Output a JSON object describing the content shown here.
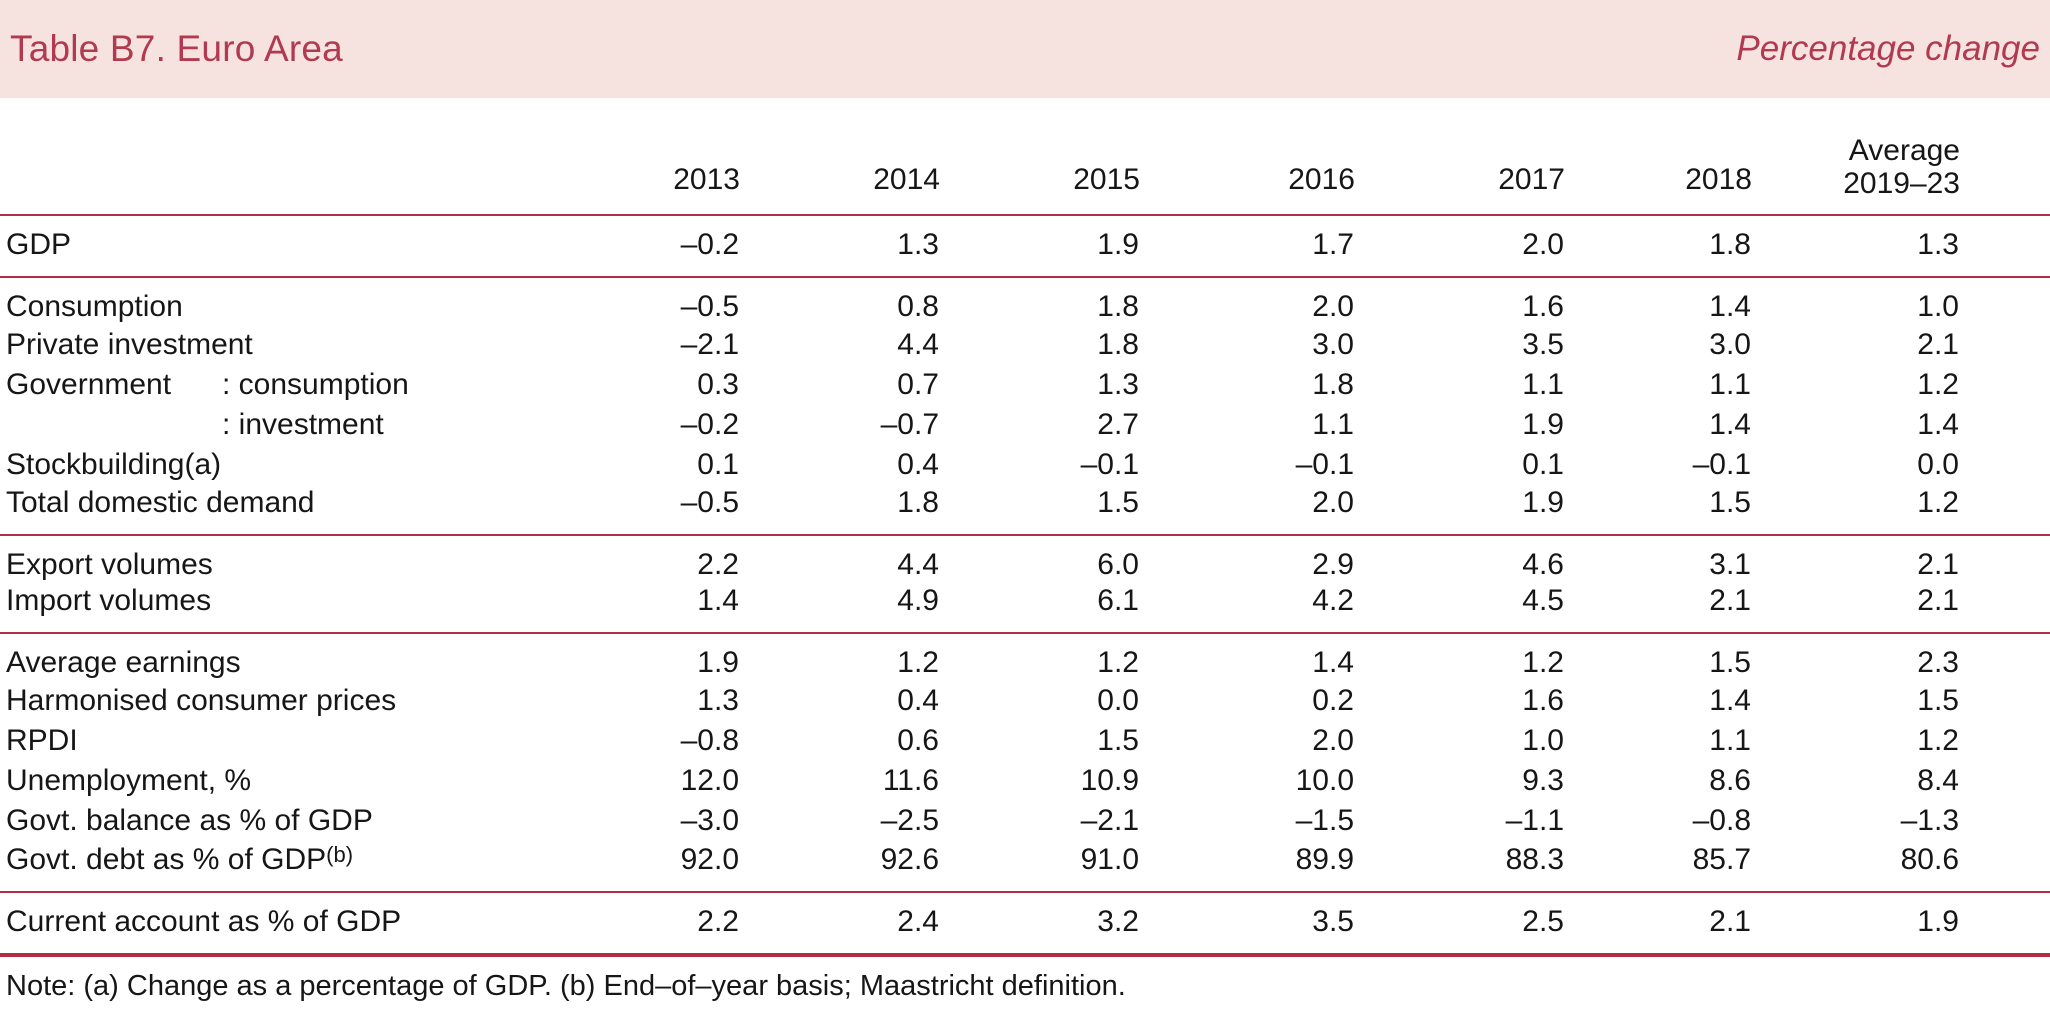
{
  "header": {
    "title": "Table B7. Euro Area",
    "subtitle": "Percentage change"
  },
  "colors": {
    "band_bg": "#f6e3e0",
    "accent_crimson": "#b13a50",
    "rule_crimson": "#b22e48",
    "text": "#161616"
  },
  "table": {
    "years": [
      "2013",
      "2014",
      "2015",
      "2016",
      "2017",
      "2018"
    ],
    "avg_line1": "Average",
    "avg_line2": "2019–23",
    "sections": [
      {
        "rows": [
          {
            "label": "GDP",
            "values": [
              "–0.2",
              "1.3",
              "1.9",
              "1.7",
              "2.0",
              "1.8",
              "1.3"
            ]
          }
        ]
      },
      {
        "rows": [
          {
            "label": "Consumption",
            "values": [
              "–0.5",
              "0.8",
              "1.8",
              "2.0",
              "1.6",
              "1.4",
              "1.0"
            ]
          },
          {
            "label": "Private investment",
            "values": [
              "–2.1",
              "4.4",
              "1.8",
              "3.0",
              "3.5",
              "3.0",
              "2.1"
            ]
          },
          {
            "prefix": "Government",
            "label": ": consumption",
            "values": [
              "0.3",
              "0.7",
              "1.3",
              "1.8",
              "1.1",
              "1.1",
              "1.2"
            ]
          },
          {
            "label": ": investment",
            "indent": true,
            "values": [
              "–0.2",
              "–0.7",
              "2.7",
              "1.1",
              "1.9",
              "1.4",
              "1.4"
            ]
          },
          {
            "label": "Stockbuilding(a)",
            "values": [
              "0.1",
              "0.4",
              "–0.1",
              "–0.1",
              "0.1",
              "–0.1",
              "0.0"
            ]
          },
          {
            "label": "Total domestic demand",
            "values": [
              "–0.5",
              "1.8",
              "1.5",
              "2.0",
              "1.9",
              "1.5",
              "1.2"
            ]
          }
        ]
      },
      {
        "rows": [
          {
            "label": "Export volumes",
            "values": [
              "2.2",
              "4.4",
              "6.0",
              "2.9",
              "4.6",
              "3.1",
              "2.1"
            ]
          },
          {
            "label": "Import volumes",
            "values": [
              "1.4",
              "4.9",
              "6.1",
              "4.2",
              "4.5",
              "2.1",
              "2.1"
            ]
          }
        ]
      },
      {
        "rows": [
          {
            "label": "Average earnings",
            "values": [
              "1.9",
              "1.2",
              "1.2",
              "1.4",
              "1.2",
              "1.5",
              "2.3"
            ]
          },
          {
            "label": "Harmonised consumer prices",
            "values": [
              "1.3",
              "0.4",
              "0.0",
              "0.2",
              "1.6",
              "1.4",
              "1.5"
            ]
          },
          {
            "label": "RPDI",
            "values": [
              "–0.8",
              "0.6",
              "1.5",
              "2.0",
              "1.0",
              "1.1",
              "1.2"
            ]
          },
          {
            "label": "Unemployment, %",
            "values": [
              "12.0",
              "11.6",
              "10.9",
              "10.0",
              "9.3",
              "8.6",
              "8.4"
            ]
          },
          {
            "label": "Govt. balance as % of GDP",
            "values": [
              "–3.0",
              "–2.5",
              "–2.1",
              "–1.5",
              "–1.1",
              "–0.8",
              "–1.3"
            ]
          },
          {
            "label": "Govt. debt as % of GDP",
            "sup": "(b)",
            "values": [
              "92.0",
              "92.6",
              "91.0",
              "89.9",
              "88.3",
              "85.7",
              "80.6"
            ]
          }
        ]
      },
      {
        "rows": [
          {
            "label": "Current account as % of GDP",
            "values": [
              "2.2",
              "2.4",
              "3.2",
              "3.5",
              "2.5",
              "2.1",
              "1.9"
            ]
          }
        ]
      }
    ]
  },
  "note": "Note: (a) Change as a percentage of GDP. (b) End–of–year basis; Maastricht definition."
}
